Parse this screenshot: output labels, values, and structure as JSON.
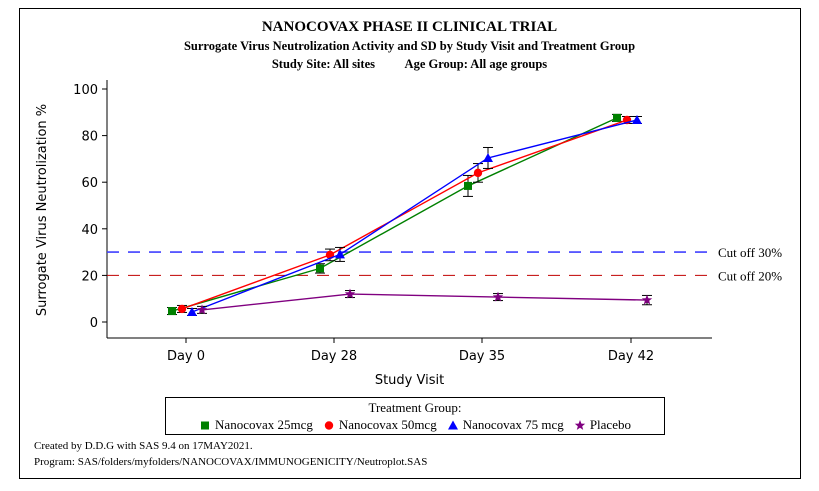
{
  "chart_data": {
    "type": "line",
    "title": "NANOCOVAX PHASE II CLINICAL TRIAL",
    "subtitle": "Surrogate Virus Neutrolization Activity and SD by Study Visit and Treatment Group",
    "subtitle2_site": "Study Site: All sites",
    "subtitle2_age": "Age Group: All age groups",
    "xlabel": "Study Visit",
    "ylabel": "Surrogate Virus Neutrolization %",
    "categories": [
      "Day 0",
      "Day 28",
      "Day 35",
      "Day 42"
    ],
    "ylim": [
      0,
      100
    ],
    "yticks": [
      0,
      20,
      40,
      60,
      80,
      100
    ],
    "series": [
      {
        "name": "Nanocovax 25mcg",
        "color": "#008000",
        "marker": "square",
        "values": [
          4.7,
          23,
          58.4,
          87.6
        ],
        "sd": [
          1.5,
          2,
          4.5,
          1.5
        ]
      },
      {
        "name": "Nanocovax 50mcg",
        "color": "#ff0000",
        "marker": "circle",
        "values": [
          5.6,
          28.8,
          64,
          86.7
        ],
        "sd": [
          1.5,
          2.5,
          4,
          1.5
        ]
      },
      {
        "name": "Nanocovax 75 mcg",
        "color": "#0000ff",
        "marker": "triangle",
        "values": [
          4.3,
          29,
          70.4,
          86.7
        ],
        "sd": [
          1.5,
          3,
          4.5,
          1.5
        ]
      },
      {
        "name": "Placebo",
        "color": "#800080",
        "marker": "star",
        "values": [
          5.2,
          12,
          10.7,
          9.4
        ],
        "sd": [
          1.5,
          1.5,
          1.5,
          2
        ]
      }
    ],
    "reference_lines": [
      {
        "value": 30,
        "label": "Cut off 30%",
        "color": "#4040ff"
      },
      {
        "value": 20,
        "label": "Cut off 20%",
        "color": "#c00000"
      }
    ],
    "legend_title": "Treatment Group:",
    "legend_placement": "bottom",
    "grid": false
  },
  "footnotes": [
    "Created by D.D.G with SAS 9.4 on 17MAY2021.",
    "Program: SAS/folders/myfolders/NANOCOVAX/IMMUNOGENICITY/Neutroplot.SAS"
  ]
}
